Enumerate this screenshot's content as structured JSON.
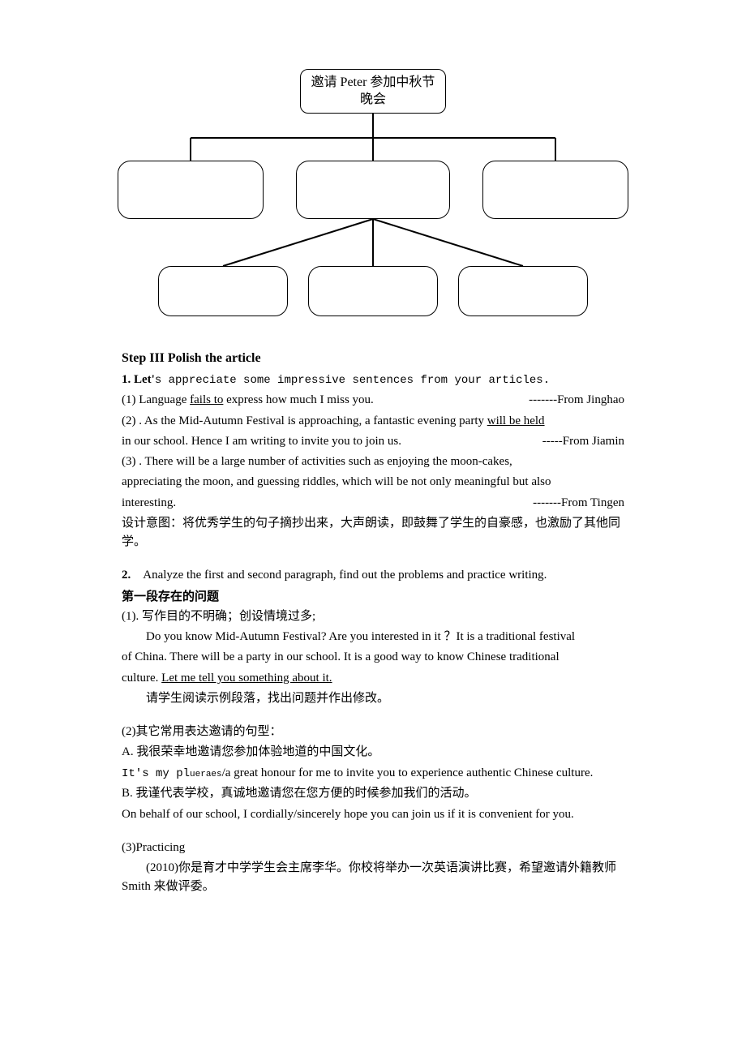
{
  "diagram": {
    "root_label": "邀请 Peter 参加中秋节\n晚会"
  },
  "step3": {
    "heading": "Step III Polish the article",
    "point1_lead": "1. Let'",
    "point1_rest": "s appreciate some impressive sentences from your articles.",
    "s1_pre": "(1)   Language ",
    "s1_u": "fails to",
    "s1_post": " express how much I miss you.",
    "s1_attr": "-------From Jinghao",
    "s2_pre": "(2)  . As the Mid-Autumn Festival is approaching, a fantastic evening party ",
    "s2_u": "will be held",
    "s2_line2": "in our school. Hence I am writing to invite you to join us.",
    "s2_attr": "-----From Jiamin",
    "s3_line1": "(3)  . There will be a large number of activities such as enjoying the moon-cakes,",
    "s3_line2": "appreciating the moon, and guessing riddles, which will be not only meaningful but also",
    "s3_line3": "interesting.",
    "s3_attr": "-------From Tingen",
    "design_note": "设计意图：将优秀学生的句子摘抄出来，大声朗读，即鼓舞了学生的自豪感，也激励了其他同学。",
    "point2": "2.    Analyze the first and second paragraph, find out the problems and practice writing.",
    "para1_title": "第一段存在的问题",
    "p1_1": "(1). 写作目的不明确；创设情境过多;",
    "p1_ex_line1": "Do you know Mid-Autumn Festival? Are you interested in it ？It is a traditional festival",
    "p1_ex_line2_pre": "of China. There will be a party in our school. It is a good way to know Chinese traditional",
    "p1_ex_line3_pre": "culture. ",
    "p1_ex_line3_u": "Let me tell you something about it.",
    "p1_note": "请学生阅读示例段落，找出问题并作出修改。",
    "p2_title": "(2)其它常用表达邀请的句型：",
    "p2_a_cn": "A.  我很荣幸地邀请您参加体验地道的中国文化。",
    "p2_a_en_pre": "It's my pl",
    "p2_a_en_small": "ueraes",
    "p2_a_en_post": "/a great honour for me to invite you to experience authentic Chinese culture.",
    "p2_b_cn": "B.  我谨代表学校，真诚地邀请您在您方便的时候参加我们的活动。",
    "p2_b_en": "On behalf of our school, I cordially/sincerely hope you can join us if it is convenient for you.",
    "p3_title": "(3)Practicing",
    "p3_body": "(2010)你是育才中学学生会主席李华。你校将举办一次英语演讲比赛，希望邀请外籍教师 Smith 来做评委。"
  }
}
